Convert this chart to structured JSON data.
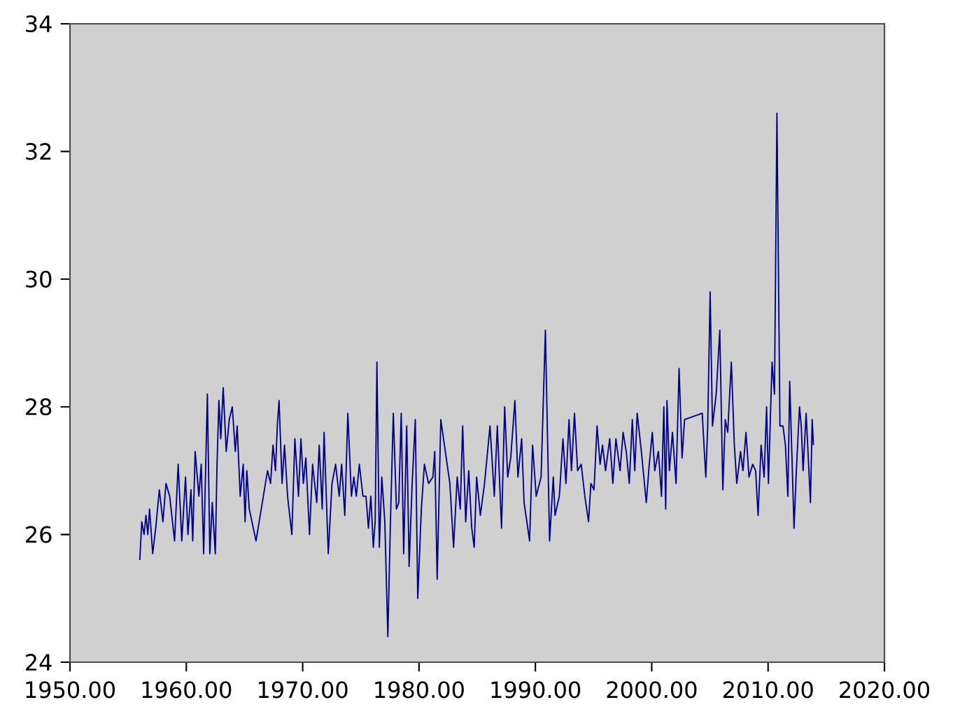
{
  "chart_data": {
    "type": "line",
    "color": "#00008b",
    "marker": "none",
    "line_style": "solid",
    "xlim": [
      1950,
      2020
    ],
    "ylim": [
      24,
      34
    ],
    "xticks": [
      {
        "value": 1950,
        "label": "1950.00"
      },
      {
        "value": 1960,
        "label": "1960.00"
      },
      {
        "value": 1970,
        "label": "1970.00"
      },
      {
        "value": 1980,
        "label": "1980.00"
      },
      {
        "value": 1990,
        "label": "1990.00"
      },
      {
        "value": 2000,
        "label": "2000.00"
      },
      {
        "value": 2010,
        "label": "2010.00"
      },
      {
        "value": 2020,
        "label": "2020.00"
      }
    ],
    "yticks": [
      24,
      26,
      28,
      30,
      32,
      34
    ],
    "x": [
      1956.0,
      1956.17,
      1956.37,
      1956.53,
      1956.69,
      1956.84,
      1957.11,
      1957.37,
      1957.68,
      1957.99,
      1958.25,
      1958.57,
      1958.99,
      1959.3,
      1959.61,
      1959.93,
      1960.14,
      1960.4,
      1960.55,
      1960.76,
      1961.08,
      1961.28,
      1961.49,
      1961.81,
      1962.02,
      1962.23,
      1962.49,
      1962.64,
      1962.8,
      1962.96,
      1963.17,
      1963.43,
      1963.69,
      1963.95,
      1964.21,
      1964.37,
      1964.63,
      1964.89,
      1965.05,
      1965.2,
      1965.41,
      1965.99,
      1966.98,
      1967.24,
      1967.45,
      1967.66,
      1967.82,
      1967.97,
      1968.23,
      1968.44,
      1968.7,
      1969.07,
      1969.33,
      1969.64,
      1969.85,
      1970.06,
      1970.27,
      1970.59,
      1970.85,
      1971.21,
      1971.42,
      1971.68,
      1971.84,
      1972.2,
      1972.52,
      1972.83,
      1973.14,
      1973.35,
      1973.62,
      1973.88,
      1974.19,
      1974.4,
      1974.61,
      1974.87,
      1975.18,
      1975.44,
      1975.65,
      1975.86,
      1976.07,
      1976.23,
      1976.38,
      1976.59,
      1976.8,
      1977.06,
      1977.32,
      1977.53,
      1977.79,
      1978.06,
      1978.26,
      1978.47,
      1978.68,
      1978.94,
      1979.15,
      1979.41,
      1979.68,
      1979.89,
      1980.2,
      1980.46,
      1980.82,
      1981.19,
      1981.35,
      1981.56,
      1981.87,
      1982.65,
      1982.97,
      1983.28,
      1983.54,
      1983.75,
      1984.01,
      1984.27,
      1984.53,
      1984.74,
      1984.95,
      1985.27,
      1985.63,
      1986.1,
      1986.47,
      1986.73,
      1987.09,
      1987.36,
      1987.62,
      1987.88,
      1988.24,
      1988.5,
      1988.82,
      1989.03,
      1989.5,
      1989.76,
      1990.07,
      1990.49,
      1990.86,
      1991.22,
      1991.54,
      1991.69,
      1992.06,
      1992.37,
      1992.63,
      1992.89,
      1993.1,
      1993.36,
      1993.63,
      1993.94,
      1994.25,
      1994.57,
      1994.77,
      1995.04,
      1995.3,
      1995.56,
      1995.77,
      1996.03,
      1996.39,
      1996.66,
      1996.92,
      1997.28,
      1997.54,
      1997.81,
      1998.07,
      1998.33,
      1998.54,
      1998.75,
      1999.11,
      1999.53,
      1999.79,
      2000.05,
      2000.26,
      2000.57,
      2000.84,
      2001.04,
      2001.2,
      2001.31,
      2001.52,
      2001.78,
      2002.09,
      2002.35,
      2002.61,
      2002.82,
      2004.34,
      2004.49,
      2004.65,
      2004.81,
      2005.02,
      2005.22,
      2005.54,
      2005.85,
      2006.11,
      2006.32,
      2006.53,
      2006.84,
      2007.1,
      2007.31,
      2007.63,
      2007.84,
      2008.1,
      2008.36,
      2008.67,
      2008.93,
      2009.14,
      2009.4,
      2009.66,
      2009.87,
      2010.03,
      2010.34,
      2010.55,
      2010.76,
      2011.02,
      2011.28,
      2011.49,
      2011.7,
      2011.86,
      2012.07,
      2012.23,
      2012.43,
      2012.7,
      2012.85,
      2013.01,
      2013.27,
      2013.48,
      2013.64,
      2013.79,
      2013.9
    ],
    "values": [
      25.6,
      26.2,
      26.0,
      26.3,
      26.0,
      26.4,
      25.7,
      26.1,
      26.7,
      26.2,
      26.8,
      26.6,
      25.9,
      27.1,
      25.9,
      26.9,
      26.0,
      26.7,
      25.9,
      27.3,
      26.6,
      27.1,
      25.7,
      28.2,
      25.7,
      26.5,
      25.7,
      27.1,
      28.1,
      27.5,
      28.3,
      27.3,
      27.8,
      28.0,
      27.3,
      27.7,
      26.6,
      27.1,
      26.2,
      27.0,
      26.4,
      25.9,
      27.0,
      26.8,
      27.4,
      27.0,
      27.7,
      28.1,
      26.8,
      27.4,
      26.6,
      26.0,
      27.5,
      26.6,
      27.5,
      26.8,
      27.2,
      26.0,
      27.1,
      26.5,
      27.4,
      26.4,
      27.6,
      25.7,
      26.8,
      27.1,
      26.6,
      27.1,
      26.3,
      27.9,
      26.6,
      26.9,
      26.6,
      27.1,
      26.6,
      26.6,
      26.1,
      26.6,
      25.8,
      26.2,
      28.7,
      25.8,
      26.9,
      26.2,
      24.4,
      26.1,
      27.9,
      26.4,
      26.5,
      27.9,
      25.7,
      27.7,
      25.5,
      26.8,
      27.8,
      25.0,
      26.4,
      27.1,
      26.8,
      26.9,
      27.3,
      25.3,
      27.8,
      26.8,
      25.8,
      26.9,
      26.4,
      27.7,
      26.2,
      27.0,
      26.1,
      25.8,
      26.9,
      26.3,
      26.8,
      27.7,
      26.6,
      27.7,
      26.1,
      28.0,
      26.9,
      27.2,
      28.1,
      26.9,
      27.5,
      26.5,
      25.9,
      27.4,
      26.6,
      26.9,
      29.2,
      25.9,
      26.9,
      26.3,
      26.6,
      27.5,
      26.8,
      27.8,
      27.0,
      27.9,
      27.0,
      27.1,
      26.6,
      26.2,
      26.8,
      26.7,
      27.7,
      27.1,
      27.4,
      27.0,
      27.5,
      26.8,
      27.5,
      27.0,
      27.6,
      27.3,
      26.8,
      27.8,
      27.0,
      27.9,
      27.3,
      26.5,
      27.1,
      27.6,
      27.0,
      27.3,
      26.6,
      28.0,
      26.4,
      28.1,
      27.0,
      27.6,
      26.8,
      28.6,
      27.2,
      27.8,
      27.9,
      27.4,
      26.9,
      27.7,
      29.8,
      27.7,
      28.2,
      29.2,
      26.7,
      27.8,
      27.6,
      28.7,
      27.4,
      26.8,
      27.3,
      27.0,
      27.6,
      26.9,
      27.1,
      27.0,
      26.3,
      27.4,
      26.9,
      28.0,
      26.8,
      28.7,
      28.2,
      32.6,
      27.7,
      27.7,
      27.4,
      26.6,
      28.4,
      27.1,
      26.1,
      27.0,
      28.0,
      27.7,
      27.0,
      27.9,
      27.1,
      26.5,
      27.8,
      27.4
    ]
  }
}
